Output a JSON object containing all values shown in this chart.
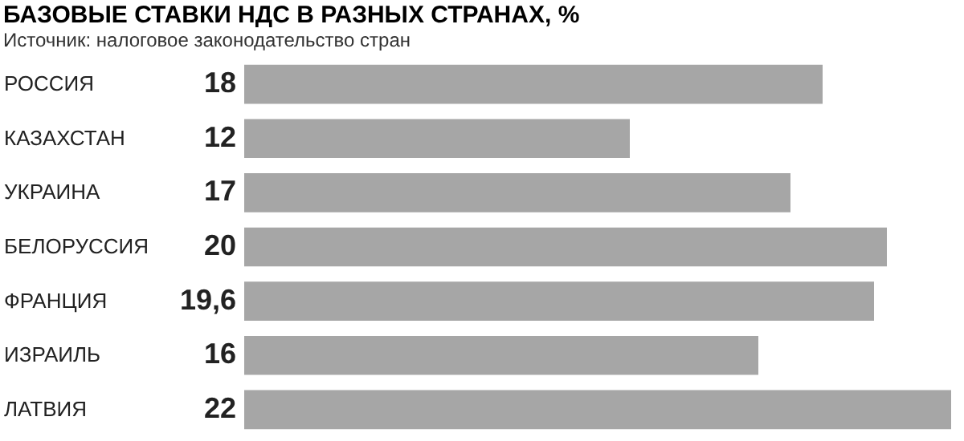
{
  "chart_data": {
    "type": "bar",
    "orientation": "horizontal",
    "title": "БАЗОВЫЕ СТАВКИ НДС В РАЗНЫХ СТРАНАХ, %",
    "subtitle": "Источник: налоговое законодательство стран",
    "categories": [
      "РОССИЯ",
      "КАЗАХСТАН",
      "УКРАИНА",
      "БЕЛОРУССИЯ",
      "ФРАНЦИЯ",
      "ИЗРАИЛЬ",
      "ЛАТВИЯ"
    ],
    "values": [
      18,
      12,
      17,
      20,
      19.6,
      16,
      22
    ],
    "value_labels": [
      "18",
      "12",
      "17",
      "20",
      "19,6",
      "16",
      "22"
    ],
    "color": "#a6a6a6"
  }
}
